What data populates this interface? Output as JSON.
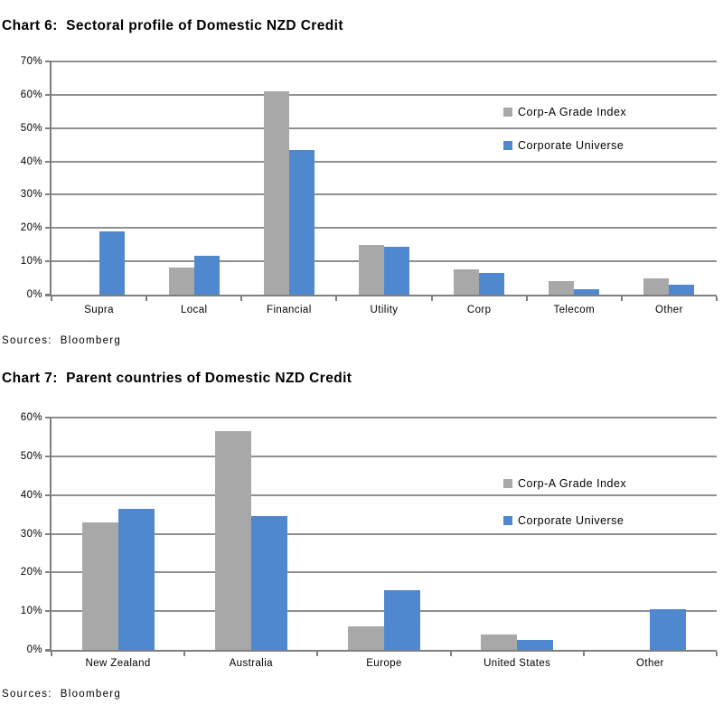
{
  "page": {
    "background": "#ffffff"
  },
  "chart_data": [
    {
      "type": "bar",
      "title": "Chart 6:  Sectoral profile of Domestic NZD Credit",
      "source": "Sources:  Bloomberg",
      "categories": [
        "Supra",
        "Local",
        "Financial",
        "Utility",
        "Corp",
        "Telecom",
        "Other"
      ],
      "series": [
        {
          "name": "Corp-A Grade Index",
          "color": "#a8a8a8",
          "values": [
            0,
            8.2,
            61,
            15,
            7.5,
            4,
            5
          ]
        },
        {
          "name": "Corporate Universe",
          "color": "#5088d0",
          "values": [
            19,
            11.8,
            43.5,
            14.5,
            6.6,
            1.7,
            3
          ]
        }
      ],
      "ylim": [
        0,
        70
      ],
      "ytick_step": 10,
      "ytick_suffix": "%",
      "xlabel": "",
      "ylabel": "",
      "grid": true,
      "legend_position": "inside-right"
    },
    {
      "type": "bar",
      "title": "Chart 7:  Parent countries of Domestic NZD Credit",
      "source": "Sources:  Bloomberg",
      "categories": [
        "New Zealand",
        "Australia",
        "Europe",
        "United States",
        "Other"
      ],
      "series": [
        {
          "name": "Corp-A Grade Index",
          "color": "#a8a8a8",
          "values": [
            33,
            56.5,
            6,
            4,
            0
          ]
        },
        {
          "name": "Corporate Universe",
          "color": "#5088d0",
          "values": [
            36.5,
            34.5,
            15.5,
            2.5,
            10.5
          ]
        }
      ],
      "ylim": [
        0,
        60
      ],
      "ytick_step": 10,
      "ytick_suffix": "%",
      "xlabel": "",
      "ylabel": "",
      "grid": true,
      "legend_position": "inside-right"
    }
  ]
}
